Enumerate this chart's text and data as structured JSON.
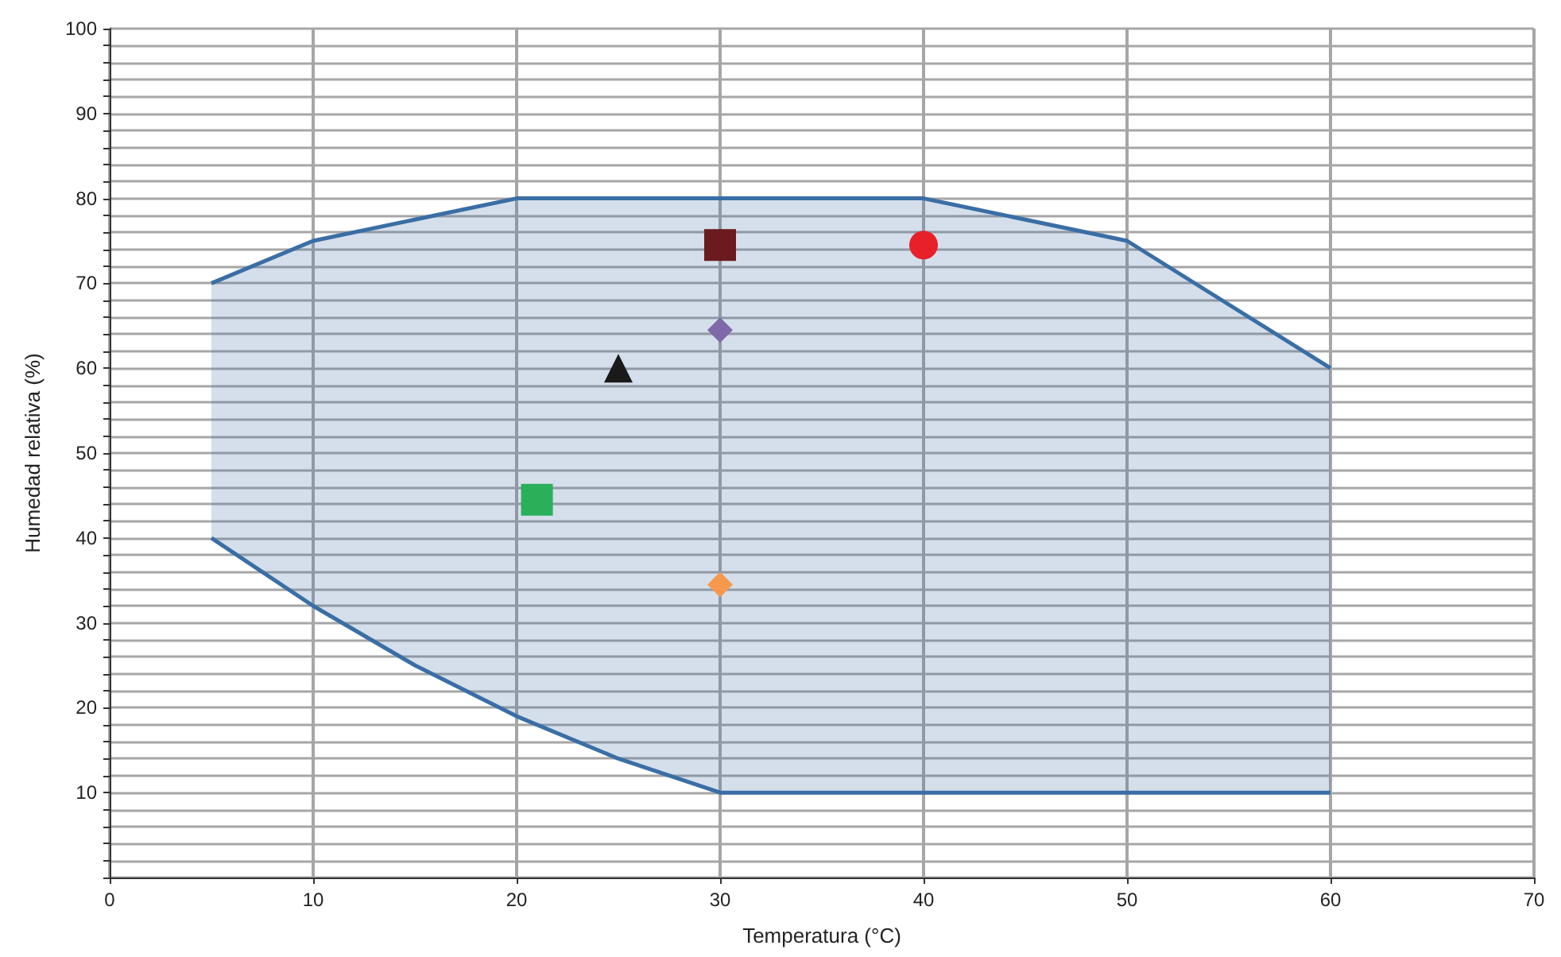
{
  "chart_data": {
    "type": "scatter",
    "xlabel": "Temperatura (°C)",
    "ylabel": "Humedad relativa (%)",
    "xlim": [
      0,
      70
    ],
    "xticks": [
      0,
      10,
      20,
      30,
      40,
      50,
      60,
      70
    ],
    "ylim": [
      0,
      100
    ],
    "yticks": [
      {
        "value": 0,
        "label": null
      },
      {
        "value": 2,
        "label": null
      },
      {
        "value": 4,
        "label": null
      },
      {
        "value": 6,
        "label": null
      },
      {
        "value": 8,
        "label": null
      },
      10,
      {
        "value": 12,
        "label": null
      },
      {
        "value": 14,
        "label": null
      },
      {
        "value": 16,
        "label": null
      },
      {
        "value": 18,
        "label": null
      },
      20,
      {
        "value": 22,
        "label": null
      },
      {
        "value": 24,
        "label": null
      },
      {
        "value": 26,
        "label": null
      },
      {
        "value": 28,
        "label": null
      },
      30,
      {
        "value": 32,
        "label": null
      },
      {
        "value": 34,
        "label": null
      },
      {
        "value": 36,
        "label": null
      },
      {
        "value": 38,
        "label": null
      },
      40,
      {
        "value": 42,
        "label": null
      },
      {
        "value": 44,
        "label": null
      },
      {
        "value": 46,
        "label": null
      },
      {
        "value": 48,
        "label": null
      },
      50,
      {
        "value": 52,
        "label": null
      },
      {
        "value": 54,
        "label": null
      },
      {
        "value": 56,
        "label": null
      },
      {
        "value": 58,
        "label": null
      },
      60,
      {
        "value": 62,
        "label": null
      },
      {
        "value": 64,
        "label": null
      },
      {
        "value": 66,
        "label": null
      },
      {
        "value": 68,
        "label": null
      },
      70,
      {
        "value": 72,
        "label": null
      },
      {
        "value": 74,
        "label": null
      },
      {
        "value": 76,
        "label": null
      },
      {
        "value": 78,
        "label": null
      },
      80,
      {
        "value": 82,
        "label": null
      },
      {
        "value": 84,
        "label": null
      },
      {
        "value": 86,
        "label": null
      },
      {
        "value": 88,
        "label": null
      },
      90,
      {
        "value": 92,
        "label": null
      },
      {
        "value": 94,
        "label": null
      },
      {
        "value": 96,
        "label": null
      },
      {
        "value": 98,
        "label": null
      },
      100
    ],
    "grid": true,
    "series": [
      {
        "type": "area",
        "color": "#3a6ea5",
        "x": [
          5,
          10,
          15,
          20,
          25,
          30,
          40,
          50,
          60
        ],
        "values": [
          70,
          75,
          77.5,
          80,
          80,
          80,
          80,
          75,
          60
        ]
      },
      {
        "type": "line",
        "color": "#3a6ea5",
        "x": [
          5,
          10,
          15,
          20,
          25,
          30,
          40,
          50,
          60
        ],
        "values": [
          40,
          32,
          25,
          19,
          14,
          10,
          10,
          10,
          10
        ]
      },
      {
        "marker": "square",
        "color": "#6b1a1d",
        "x": [
          30
        ],
        "values": [
          74.5
        ]
      },
      {
        "marker": "circle",
        "color": "#e8202a",
        "x": [
          40
        ],
        "values": [
          74.5
        ]
      },
      {
        "marker": "diamond",
        "color": "#8069a8",
        "x": [
          30
        ],
        "values": [
          64.5
        ]
      },
      {
        "marker": "triangle",
        "color": "#1a1a1a",
        "x": [
          25
        ],
        "values": [
          60
        ]
      },
      {
        "marker": "square",
        "color": "#2bb05a",
        "x": [
          21
        ],
        "values": [
          44.5
        ]
      },
      {
        "marker": "diamond",
        "color": "#f7984f",
        "x": [
          30
        ],
        "values": [
          34.5
        ]
      }
    ]
  }
}
